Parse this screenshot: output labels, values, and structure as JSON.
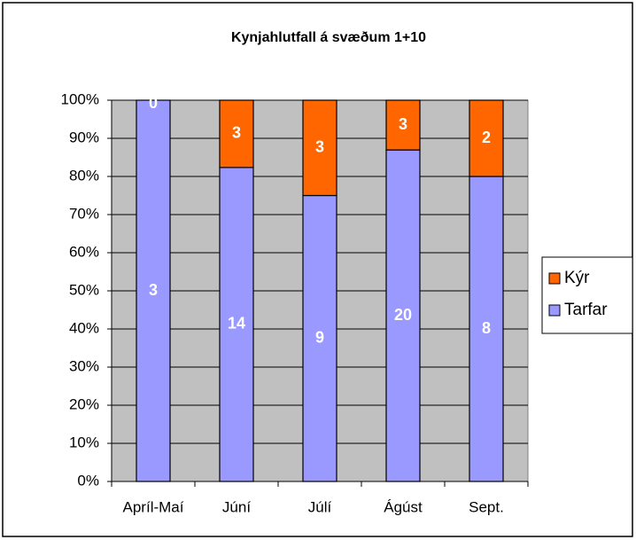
{
  "chart_data": {
    "type": "bar",
    "stacking": "percent",
    "title": "Kynjahlutfall á svæðum   1+10",
    "categories": [
      "Apríl-Maí",
      "Júní",
      "Júlí",
      "Ágúst",
      "Sept."
    ],
    "series": [
      {
        "name": "Tarfar",
        "color": "#9999ff",
        "values": [
          3,
          14,
          9,
          20,
          8
        ]
      },
      {
        "name": "Kýr",
        "color": "#ff6600",
        "values": [
          0,
          3,
          3,
          3,
          2
        ]
      }
    ],
    "ylim": [
      0,
      100
    ],
    "yticks": [
      {
        "value": 0,
        "label": "0%"
      },
      {
        "value": 10,
        "label": "10%"
      },
      {
        "value": 20,
        "label": "20%"
      },
      {
        "value": 30,
        "label": "30%"
      },
      {
        "value": 40,
        "label": "40%"
      },
      {
        "value": 50,
        "label": "50%"
      },
      {
        "value": 60,
        "label": "60%"
      },
      {
        "value": 70,
        "label": "70%"
      },
      {
        "value": 80,
        "label": "80%"
      },
      {
        "value": 90,
        "label": "90%"
      },
      {
        "value": 100,
        "label": "100%"
      }
    ],
    "grid": true,
    "legend": "right"
  }
}
